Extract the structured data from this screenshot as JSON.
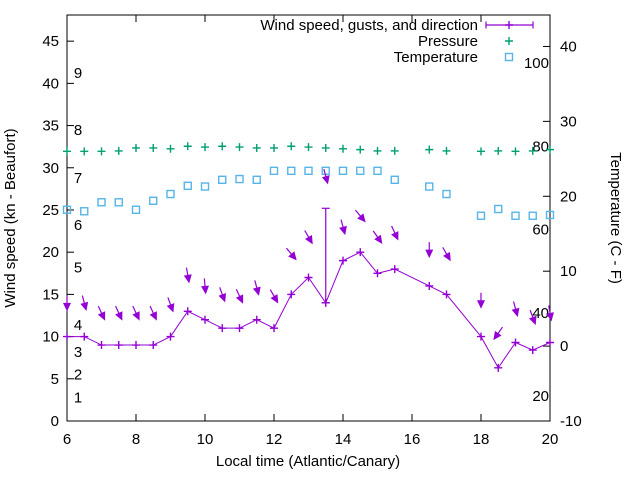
{
  "chart_data": {
    "type": "line",
    "title": "",
    "xlabel": "Local time (Atlantic/Canary)",
    "ylabel_left": "Wind speed (kn - Beaufort)",
    "ylabel_right": "Temperature (C - F)",
    "x_range": [
      6,
      20
    ],
    "x_ticks": [
      "6",
      "8",
      "10",
      "12",
      "14",
      "16",
      "18",
      "20"
    ],
    "x_tick_values": [
      6,
      8,
      10,
      12,
      14,
      16,
      18,
      20
    ],
    "y_left_range": [
      0,
      48.1
    ],
    "y_left_ticks": [
      "0",
      "5",
      "10",
      "15",
      "20",
      "25",
      "30",
      "35",
      "40",
      "45"
    ],
    "y_left_tick_values": [
      0,
      5,
      10,
      15,
      20,
      25,
      30,
      35,
      40,
      45
    ],
    "y_right_range": [
      -10,
      44.2
    ],
    "y_right_ticks": [
      "-10",
      "0",
      "10",
      "20",
      "30",
      "40"
    ],
    "y_right_tick_values": [
      -10,
      0,
      10,
      20,
      30,
      40
    ],
    "grid": false,
    "legend_position": "top-right-inside",
    "legend": [
      {
        "label": "Wind speed, gusts, and direction",
        "color": "#9400d3",
        "sample": "errorbar-line"
      },
      {
        "label": "Pressure",
        "color": "#009e73",
        "sample": "plus"
      },
      {
        "label": "Temperature",
        "color": "#56b4e9",
        "sample": "square"
      }
    ],
    "beaufort_scale_labels": [
      {
        "label": "1",
        "kn": 2.8
      },
      {
        "label": "2",
        "kn": 5.5
      },
      {
        "label": "3",
        "kn": 8.2
      },
      {
        "label": "4",
        "kn": 11.4
      },
      {
        "label": "5",
        "kn": 18.2
      },
      {
        "label": "6",
        "kn": 23.2
      },
      {
        "label": "7",
        "kn": 28.8
      },
      {
        "label": "8",
        "kn": 34.5
      },
      {
        "label": "9",
        "kn": 41.2
      }
    ],
    "fahrenheit_scale_labels": [
      {
        "label": "20",
        "f": 20
      },
      {
        "label": "40",
        "f": 40
      },
      {
        "label": "60",
        "f": 60
      },
      {
        "label": "80",
        "f": 80
      },
      {
        "label": "100",
        "f": 100
      }
    ],
    "colors": {
      "wind": "#9400d3",
      "pressure": "#009e73",
      "temperature": "#56b4e9",
      "axis": "#000000",
      "background": "#ffffff"
    },
    "x": [
      6,
      6.5,
      7,
      7.5,
      8,
      8.5,
      9,
      9.5,
      10,
      10.5,
      11,
      11.5,
      12,
      12.5,
      13,
      13.5,
      14,
      14.5,
      15,
      15.5,
      16.5,
      17,
      18,
      18.5,
      19,
      19.5,
      20
    ],
    "series": [
      {
        "name": "Wind speed (kn)",
        "axis": "left",
        "style": "line-plus",
        "values": [
          10,
          10,
          9,
          9,
          9,
          9,
          10,
          13,
          12,
          11,
          11,
          12,
          11,
          15,
          17,
          14,
          19,
          20,
          17.5,
          18,
          16,
          15,
          10,
          6.3,
          9.3,
          8.4,
          9.3
        ]
      },
      {
        "name": "Wind gust / direction arrows",
        "axis": "left",
        "style": "arrow",
        "points_x_kn_angle": [
          [
            6,
            14,
            0
          ],
          [
            6.5,
            14,
            -15
          ],
          [
            7,
            12.8,
            -25
          ],
          [
            7.5,
            12.8,
            -25
          ],
          [
            8,
            12.8,
            -25
          ],
          [
            8.5,
            12.8,
            -25
          ],
          [
            9,
            13.8,
            -20
          ],
          [
            9.5,
            17.3,
            -10
          ],
          [
            10,
            16,
            -5
          ],
          [
            10.5,
            15,
            -20
          ],
          [
            11,
            14.8,
            -25
          ],
          [
            11.5,
            15.8,
            -15
          ],
          [
            12,
            14.8,
            -30
          ],
          [
            12.5,
            19.8,
            -40
          ],
          [
            13,
            21.8,
            -30
          ],
          [
            13.5,
            29,
            -15
          ],
          [
            14,
            23,
            -15
          ],
          [
            14.5,
            24.3,
            -40
          ],
          [
            15,
            21.8,
            -35
          ],
          [
            15.5,
            22.3,
            -25
          ],
          [
            16.5,
            20.3,
            0
          ],
          [
            17,
            19.8,
            -30
          ],
          [
            18,
            14.3,
            0
          ],
          [
            18.5,
            10.4,
            35
          ],
          [
            19,
            13.3,
            -15
          ],
          [
            19.5,
            12.3,
            -20
          ],
          [
            20,
            12.8,
            -10
          ]
        ]
      },
      {
        "name": "Gust spike error bar",
        "axis": "left",
        "style": "errorbar",
        "x": 13.5,
        "kn_low": 14,
        "kn_high": 25.2
      },
      {
        "name": "Pressure",
        "axis": "left-unlabeled",
        "style": "plus",
        "values_kn_equivalent": [
          31.95,
          31.95,
          31.95,
          32.0,
          32.35,
          32.35,
          32.25,
          32.55,
          32.45,
          32.55,
          32.45,
          32.35,
          32.35,
          32.55,
          32.45,
          32.35,
          32.25,
          32.15,
          32.0,
          32.0,
          32.15,
          32.0,
          31.95,
          32.0,
          31.95,
          32.0,
          32.15
        ]
      },
      {
        "name": "Temperature (C)",
        "axis": "right",
        "style": "square",
        "values": [
          18.2,
          18.0,
          19.2,
          19.2,
          18.2,
          19.4,
          20.3,
          21.4,
          21.3,
          22.2,
          22.3,
          22.2,
          23.4,
          23.4,
          23.4,
          23.4,
          23.4,
          23.4,
          23.4,
          22.2,
          21.3,
          20.3,
          17.4,
          18.3,
          17.4,
          17.4,
          17.5
        ]
      }
    ]
  }
}
